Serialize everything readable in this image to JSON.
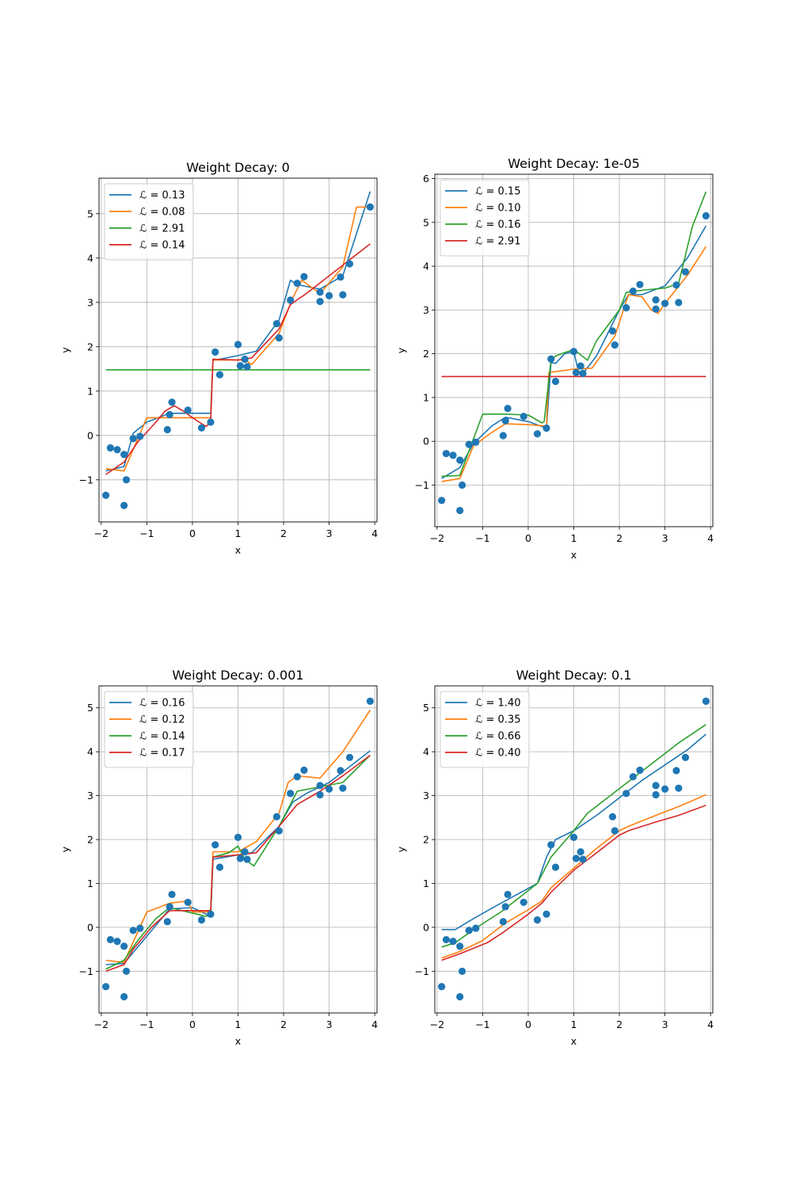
{
  "figure": {
    "width": 1000,
    "height": 1500
  },
  "colors": {
    "c0": "#1f77b4",
    "c1": "#ff7f0e",
    "c2": "#2ca02c",
    "c3": "#d62728",
    "grid": "#b0b0b0",
    "scatter": "#1f77b4"
  },
  "chart_data": [
    {
      "type": "line",
      "title": "Weight Decay: 0",
      "xlabel": "x",
      "ylabel": "y",
      "xlim": [
        -2.05,
        4.05
      ],
      "ylim": [
        -1.95,
        5.8
      ],
      "xticks": [
        -2,
        -1,
        0,
        1,
        2,
        3,
        4
      ],
      "yticks": [
        -1,
        0,
        1,
        2,
        3,
        4,
        5
      ],
      "grid": true,
      "legend_position": "upper-left",
      "scatter": {
        "x": [
          -1.9,
          -1.8,
          -1.65,
          -1.5,
          -1.45,
          -1.5,
          -1.3,
          -1.15,
          -0.55,
          -0.5,
          -0.45,
          -0.1,
          0.2,
          0.4,
          0.5,
          0.6,
          1.0,
          1.05,
          1.15,
          1.2,
          1.85,
          1.9,
          2.15,
          2.3,
          2.45,
          2.8,
          2.8,
          3.0,
          3.25,
          3.3,
          3.45,
          3.9
        ],
        "y": [
          -1.35,
          -0.28,
          -0.32,
          -0.43,
          -1.0,
          -1.58,
          -0.07,
          -0.02,
          0.13,
          0.47,
          0.75,
          0.57,
          0.17,
          0.3,
          1.88,
          1.37,
          2.05,
          1.57,
          1.72,
          1.55,
          2.52,
          2.2,
          3.05,
          3.43,
          3.58,
          3.23,
          3.02,
          3.15,
          3.57,
          3.17,
          3.87,
          5.15
        ]
      },
      "series": [
        {
          "label": "ℒ = 0.13",
          "color": "#1f77b4",
          "x": [
            -1.9,
            -1.5,
            -1.3,
            -1.0,
            -0.5,
            0.4,
            0.45,
            0.5,
            1.0,
            1.4,
            1.9,
            2.15,
            2.3,
            2.8,
            3.3,
            3.9
          ],
          "y": [
            -0.8,
            -0.7,
            0.05,
            0.3,
            0.5,
            0.5,
            1.7,
            1.7,
            1.8,
            1.9,
            2.6,
            3.5,
            3.4,
            3.3,
            3.6,
            5.5
          ]
        },
        {
          "label": "ℒ = 0.08",
          "color": "#ff7f0e",
          "x": [
            -1.9,
            -1.5,
            -1.0,
            -0.5,
            0.4,
            0.45,
            1.15,
            1.3,
            1.9,
            2.2,
            2.4,
            2.8,
            3.3,
            3.6,
            3.9
          ],
          "y": [
            -0.75,
            -0.8,
            0.4,
            0.4,
            0.4,
            1.7,
            1.7,
            1.6,
            2.3,
            3.1,
            3.5,
            3.2,
            3.8,
            5.15,
            5.15
          ]
        },
        {
          "label": "ℒ = 2.91",
          "color": "#2ca02c",
          "x": [
            -1.9,
            3.9
          ],
          "y": [
            1.48,
            1.48
          ]
        },
        {
          "label": "ℒ = 0.14",
          "color": "#d62728",
          "x": [
            -1.9,
            -1.5,
            -1.2,
            -0.8,
            -0.6,
            -0.4,
            -0.2,
            0.0,
            0.3,
            0.4,
            0.45,
            1.0,
            1.3,
            1.9,
            2.15,
            2.5,
            3.0,
            3.5,
            3.9
          ],
          "y": [
            -0.88,
            -0.6,
            -0.15,
            0.3,
            0.55,
            0.67,
            0.55,
            0.4,
            0.2,
            0.3,
            1.72,
            1.7,
            1.75,
            2.4,
            2.95,
            3.2,
            3.6,
            4.0,
            4.32
          ]
        }
      ]
    },
    {
      "type": "line",
      "title": "Weight Decay: 1e-05",
      "xlabel": "x",
      "ylabel": "y",
      "xlim": [
        -2.05,
        4.05
      ],
      "ylim": [
        -1.95,
        6.1
      ],
      "xticks": [
        -2,
        -1,
        0,
        1,
        2,
        3,
        4
      ],
      "yticks": [
        -1,
        0,
        1,
        2,
        3,
        4,
        5,
        6
      ],
      "grid": true,
      "legend_position": "upper-left",
      "scatter": {
        "x": [
          -1.9,
          -1.8,
          -1.65,
          -1.5,
          -1.45,
          -1.5,
          -1.3,
          -1.15,
          -0.55,
          -0.5,
          -0.45,
          -0.1,
          0.2,
          0.4,
          0.5,
          0.6,
          1.0,
          1.05,
          1.15,
          1.2,
          1.85,
          1.9,
          2.15,
          2.3,
          2.45,
          2.8,
          2.8,
          3.0,
          3.25,
          3.3,
          3.45,
          3.9
        ],
        "y": [
          -1.35,
          -0.28,
          -0.32,
          -0.43,
          -1.0,
          -1.58,
          -0.07,
          -0.02,
          0.13,
          0.47,
          0.75,
          0.57,
          0.17,
          0.3,
          1.88,
          1.37,
          2.05,
          1.57,
          1.72,
          1.55,
          2.52,
          2.2,
          3.05,
          3.43,
          3.58,
          3.23,
          3.02,
          3.15,
          3.57,
          3.17,
          3.87,
          5.15
        ]
      },
      "series": [
        {
          "label": "ℒ = 0.15",
          "color": "#1f77b4",
          "x": [
            -1.9,
            -1.5,
            -1.2,
            -0.8,
            -0.5,
            0.0,
            0.4,
            0.5,
            0.6,
            0.8,
            1.0,
            1.1,
            1.2,
            1.5,
            2.0,
            2.2,
            2.5,
            3.0,
            3.5,
            3.9
          ],
          "y": [
            -0.85,
            -0.6,
            -0.05,
            0.35,
            0.55,
            0.45,
            0.3,
            1.8,
            1.78,
            2.0,
            2.05,
            1.6,
            1.55,
            1.95,
            3.0,
            3.35,
            3.35,
            3.55,
            4.2,
            4.92
          ]
        },
        {
          "label": "ℒ = 0.10",
          "color": "#ff7f0e",
          "x": [
            -1.9,
            -1.5,
            -1.2,
            -0.8,
            -0.5,
            0.0,
            0.4,
            0.45,
            1.0,
            1.4,
            1.9,
            2.2,
            2.5,
            2.7,
            2.85,
            3.0,
            3.5,
            3.9
          ],
          "y": [
            -0.92,
            -0.85,
            -0.1,
            0.2,
            0.4,
            0.38,
            0.35,
            1.57,
            1.65,
            1.67,
            2.4,
            3.35,
            3.3,
            3.0,
            2.92,
            3.15,
            3.8,
            4.45
          ]
        },
        {
          "label": "ℒ = 0.16",
          "color": "#2ca02c",
          "x": [
            -1.9,
            -1.5,
            -1.0,
            -0.5,
            0.0,
            0.3,
            0.35,
            0.5,
            0.6,
            1.0,
            1.3,
            1.5,
            2.0,
            2.15,
            2.5,
            3.0,
            3.3,
            3.6,
            3.9
          ],
          "y": [
            -0.8,
            -0.78,
            0.62,
            0.62,
            0.6,
            0.42,
            0.45,
            1.85,
            1.95,
            2.1,
            1.85,
            2.3,
            3.0,
            3.4,
            3.45,
            3.5,
            3.6,
            4.9,
            5.7
          ]
        },
        {
          "label": "ℒ = 2.91",
          "color": "#d62728",
          "x": [
            -1.9,
            3.9
          ],
          "y": [
            1.48,
            1.48
          ]
        }
      ]
    },
    {
      "type": "line",
      "title": "Weight Decay: 0.001",
      "xlabel": "x",
      "ylabel": "y",
      "xlim": [
        -2.05,
        4.05
      ],
      "ylim": [
        -1.95,
        5.5
      ],
      "xticks": [
        -2,
        -1,
        0,
        1,
        2,
        3,
        4
      ],
      "yticks": [
        -1,
        0,
        1,
        2,
        3,
        4,
        5
      ],
      "grid": true,
      "legend_position": "upper-left",
      "scatter": {
        "x": [
          -1.9,
          -1.8,
          -1.65,
          -1.5,
          -1.45,
          -1.5,
          -1.3,
          -1.15,
          -0.55,
          -0.5,
          -0.45,
          -0.1,
          0.2,
          0.4,
          0.5,
          0.6,
          1.0,
          1.05,
          1.15,
          1.2,
          1.85,
          1.9,
          2.15,
          2.3,
          2.45,
          2.8,
          2.8,
          3.0,
          3.25,
          3.3,
          3.45,
          3.9
        ],
        "y": [
          -1.35,
          -0.28,
          -0.32,
          -0.43,
          -1.0,
          -1.58,
          -0.07,
          -0.02,
          0.13,
          0.47,
          0.75,
          0.57,
          0.17,
          0.3,
          1.88,
          1.37,
          2.05,
          1.57,
          1.72,
          1.55,
          2.52,
          2.2,
          3.05,
          3.43,
          3.58,
          3.23,
          3.02,
          3.15,
          3.57,
          3.17,
          3.87,
          5.15
        ]
      },
      "series": [
        {
          "label": "ℒ = 0.16",
          "color": "#1f77b4",
          "x": [
            -1.9,
            -1.5,
            -1.0,
            -0.5,
            0.0,
            0.4,
            0.45,
            1.0,
            1.3,
            1.9,
            2.2,
            2.5,
            3.0,
            3.5,
            3.9
          ],
          "y": [
            -0.85,
            -0.82,
            -0.2,
            0.42,
            0.45,
            0.25,
            1.55,
            1.65,
            1.7,
            2.3,
            2.85,
            3.05,
            3.3,
            3.7,
            4.02
          ]
        },
        {
          "label": "ℒ = 0.12",
          "color": "#ff7f0e",
          "x": [
            -1.9,
            -1.5,
            -1.0,
            -0.5,
            -0.1,
            0.0,
            0.4,
            0.45,
            1.0,
            1.4,
            1.9,
            2.1,
            2.3,
            2.8,
            3.3,
            3.9
          ],
          "y": [
            -0.75,
            -0.8,
            0.35,
            0.55,
            0.6,
            0.35,
            0.35,
            1.72,
            1.72,
            1.95,
            2.6,
            3.3,
            3.45,
            3.4,
            4.0,
            4.95
          ]
        },
        {
          "label": "ℒ = 0.14",
          "color": "#2ca02c",
          "x": [
            -1.9,
            -1.5,
            -1.2,
            -0.8,
            -0.5,
            0.3,
            0.4,
            0.45,
            0.8,
            1.0,
            1.15,
            1.35,
            1.9,
            2.3,
            2.8,
            3.3,
            3.9
          ],
          "y": [
            -0.95,
            -0.75,
            -0.3,
            0.2,
            0.45,
            0.25,
            0.3,
            1.6,
            1.7,
            1.85,
            1.55,
            1.4,
            2.3,
            3.1,
            3.2,
            3.3,
            3.92
          ]
        },
        {
          "label": "ℒ = 0.17",
          "color": "#d62728",
          "x": [
            -1.9,
            -1.5,
            -1.3,
            -0.9,
            -0.5,
            0.0,
            0.4,
            0.45,
            1.0,
            1.4,
            1.9,
            2.3,
            2.8,
            3.3,
            3.9
          ],
          "y": [
            -1.0,
            -0.85,
            -0.5,
            0.0,
            0.38,
            0.38,
            0.38,
            1.6,
            1.65,
            1.7,
            2.3,
            2.8,
            3.1,
            3.45,
            3.92
          ]
        }
      ]
    },
    {
      "type": "line",
      "title": "Weight Decay: 0.1",
      "xlabel": "x",
      "ylabel": "y",
      "xlim": [
        -2.05,
        4.05
      ],
      "ylim": [
        -1.95,
        5.5
      ],
      "xticks": [
        -2,
        -1,
        0,
        1,
        2,
        3,
        4
      ],
      "yticks": [
        -1,
        0,
        1,
        2,
        3,
        4,
        5
      ],
      "grid": true,
      "legend_position": "upper-left",
      "scatter": {
        "x": [
          -1.9,
          -1.8,
          -1.65,
          -1.5,
          -1.45,
          -1.5,
          -1.3,
          -1.15,
          -0.55,
          -0.5,
          -0.45,
          -0.1,
          0.2,
          0.4,
          0.5,
          0.6,
          1.0,
          1.05,
          1.15,
          1.2,
          1.85,
          1.9,
          2.15,
          2.3,
          2.45,
          2.8,
          2.8,
          3.0,
          3.25,
          3.3,
          3.45,
          3.9
        ],
        "y": [
          -1.35,
          -0.28,
          -0.32,
          -0.43,
          -1.0,
          -1.58,
          -0.07,
          -0.02,
          0.13,
          0.47,
          0.75,
          0.57,
          0.17,
          0.3,
          1.88,
          1.37,
          2.05,
          1.57,
          1.72,
          1.55,
          2.52,
          2.2,
          3.05,
          3.43,
          3.58,
          3.23,
          3.02,
          3.15,
          3.57,
          3.17,
          3.87,
          5.15
        ]
      },
      "series": [
        {
          "label": "ℒ = 1.40",
          "color": "#1f77b4",
          "x": [
            -1.9,
            -1.6,
            -1.2,
            -0.6,
            0.2,
            0.4,
            0.6,
            1.0,
            1.5,
            2.0,
            2.5,
            3.0,
            3.5,
            3.9
          ],
          "y": [
            -0.05,
            -0.05,
            0.2,
            0.55,
            1.0,
            1.6,
            2.0,
            2.2,
            2.55,
            2.95,
            3.35,
            3.7,
            4.05,
            4.4
          ]
        },
        {
          "label": "ℒ = 0.35",
          "color": "#ff7f0e",
          "x": [
            -1.9,
            -1.5,
            -1.0,
            -0.5,
            0.0,
            0.3,
            0.5,
            1.0,
            1.5,
            2.0,
            2.2,
            2.8,
            3.3,
            3.9
          ],
          "y": [
            -0.7,
            -0.55,
            -0.3,
            0.1,
            0.4,
            0.6,
            0.9,
            1.35,
            1.8,
            2.2,
            2.3,
            2.55,
            2.75,
            3.02
          ]
        },
        {
          "label": "ℒ = 0.66",
          "color": "#2ca02c",
          "x": [
            -1.9,
            -1.6,
            -1.2,
            -0.6,
            0.2,
            0.5,
            1.0,
            1.3,
            1.8,
            2.3,
            2.8,
            3.3,
            3.9
          ],
          "y": [
            -0.45,
            -0.35,
            -0.05,
            0.35,
            1.0,
            1.6,
            2.2,
            2.6,
            3.0,
            3.4,
            3.8,
            4.2,
            4.62
          ]
        },
        {
          "label": "ℒ = 0.40",
          "color": "#d62728",
          "x": [
            -1.9,
            -1.5,
            -0.9,
            -0.6,
            0.0,
            0.3,
            0.5,
            1.0,
            1.5,
            2.0,
            2.2,
            2.8,
            3.3,
            3.9
          ],
          "y": [
            -0.75,
            -0.6,
            -0.35,
            -0.15,
            0.3,
            0.55,
            0.8,
            1.3,
            1.7,
            2.1,
            2.2,
            2.4,
            2.55,
            2.78
          ]
        }
      ]
    }
  ]
}
